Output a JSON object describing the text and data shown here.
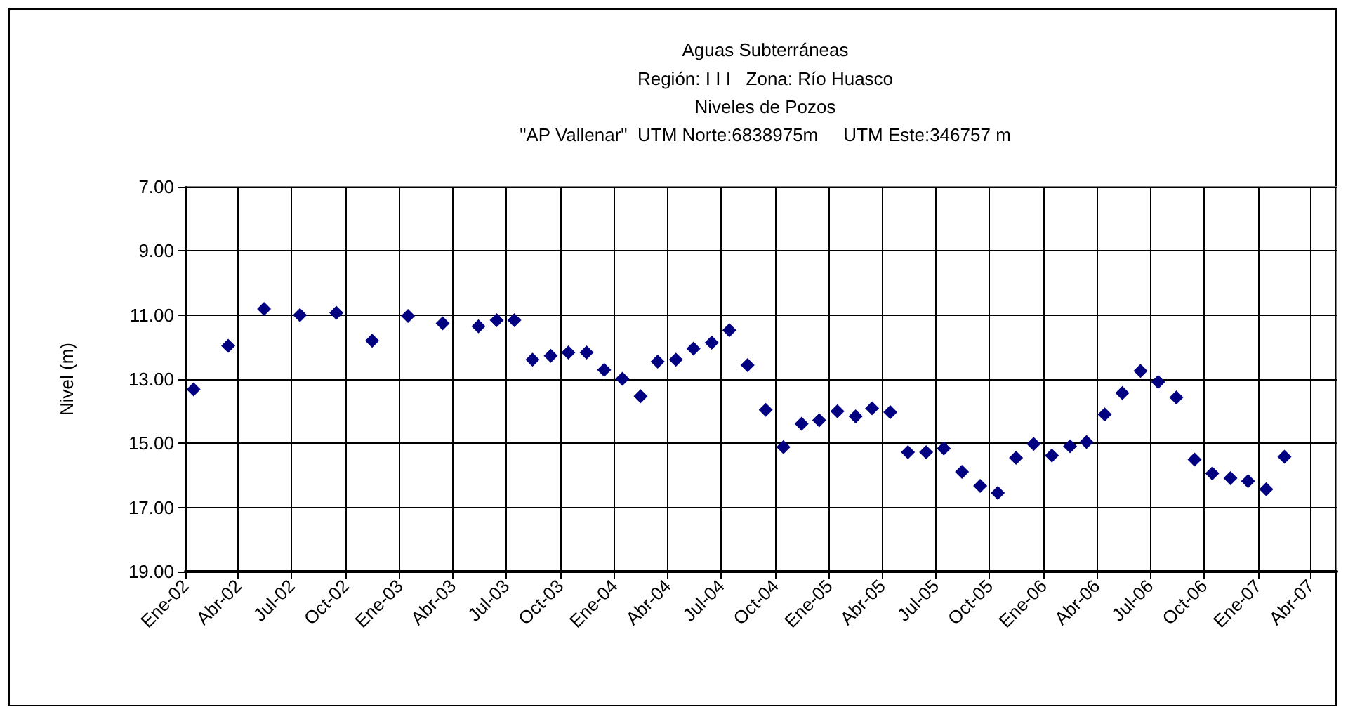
{
  "chart_data": {
    "type": "scatter",
    "title": "Aguas Subterráneas",
    "subtitle": "Región: I I I   Zona: Río Huasco\nNiveles de Pozos\n\"AP Vallenar\"  UTM Norte:6838975m     UTM Este:346757 m",
    "ylabel": "Nivel (m)",
    "x": [
      "2002-01-15",
      "2002-03-15",
      "2002-05-15",
      "2002-07-15",
      "2002-09-15",
      "2002-11-15",
      "2003-01-15",
      "2003-03-15",
      "2003-05-15",
      "2003-06-15",
      "2003-07-15",
      "2003-08-15",
      "2003-09-15",
      "2003-10-15",
      "2003-11-15",
      "2003-12-15",
      "2004-01-15",
      "2004-02-15",
      "2004-03-15",
      "2004-04-15",
      "2004-05-15",
      "2004-06-15",
      "2004-07-15",
      "2004-08-15",
      "2004-09-15",
      "2004-10-15",
      "2004-11-15",
      "2004-12-15",
      "2005-01-15",
      "2005-02-15",
      "2005-03-15",
      "2005-04-15",
      "2005-05-15",
      "2005-06-15",
      "2005-07-15",
      "2005-08-15",
      "2005-09-15",
      "2005-10-15",
      "2005-11-15",
      "2005-12-15",
      "2006-01-15",
      "2006-02-15",
      "2006-03-15",
      "2006-04-15",
      "2006-05-15",
      "2006-06-15",
      "2006-07-15",
      "2006-08-15",
      "2006-09-15",
      "2006-10-15",
      "2006-11-15",
      "2006-12-15",
      "2007-01-15",
      "2007-02-15"
    ],
    "values": [
      13.32,
      11.96,
      10.81,
      11.0,
      10.93,
      11.8,
      11.03,
      11.26,
      11.35,
      11.16,
      11.16,
      12.39,
      12.27,
      12.17,
      12.17,
      12.71,
      12.99,
      13.53,
      12.45,
      12.39,
      12.05,
      11.86,
      11.47,
      12.56,
      13.96,
      15.12,
      14.39,
      14.28,
      14.0,
      14.16,
      13.91,
      14.03,
      15.28,
      15.28,
      15.16,
      15.89,
      16.33,
      16.55,
      15.45,
      15.02,
      15.38,
      15.09,
      14.96,
      14.1,
      13.43,
      12.74,
      13.09,
      13.57,
      15.51,
      15.94,
      16.09,
      16.18,
      16.43,
      15.42
    ],
    "color": "#000080",
    "marker": "diamond",
    "xlim": [
      "2002-01-01",
      "2007-05-15"
    ],
    "xticks": [
      {
        "value": "2002-01-01",
        "label": "Ene-02"
      },
      {
        "value": "2002-04-01",
        "label": "Abr-02"
      },
      {
        "value": "2002-07-01",
        "label": "Jul-02"
      },
      {
        "value": "2002-10-01",
        "label": "Oct-02"
      },
      {
        "value": "2003-01-01",
        "label": "Ene-03"
      },
      {
        "value": "2003-04-01",
        "label": "Abr-03"
      },
      {
        "value": "2003-07-01",
        "label": "Jul-03"
      },
      {
        "value": "2003-10-01",
        "label": "Oct-03"
      },
      {
        "value": "2004-01-01",
        "label": "Ene-04"
      },
      {
        "value": "2004-04-01",
        "label": "Abr-04"
      },
      {
        "value": "2004-07-01",
        "label": "Jul-04"
      },
      {
        "value": "2004-10-01",
        "label": "Oct-04"
      },
      {
        "value": "2005-01-01",
        "label": "Ene-05"
      },
      {
        "value": "2005-04-01",
        "label": "Abr-05"
      },
      {
        "value": "2005-07-01",
        "label": "Jul-05"
      },
      {
        "value": "2005-10-01",
        "label": "Oct-05"
      },
      {
        "value": "2006-01-01",
        "label": "Ene-06"
      },
      {
        "value": "2006-04-01",
        "label": "Abr-06"
      },
      {
        "value": "2006-07-01",
        "label": "Jul-06"
      },
      {
        "value": "2006-10-01",
        "label": "Oct-06"
      },
      {
        "value": "2007-01-01",
        "label": "Ene-07"
      },
      {
        "value": "2007-04-01",
        "label": "Abr-07"
      }
    ],
    "ylim": [
      19,
      7
    ],
    "yticks": [
      {
        "value": 7,
        "label": "7.00"
      },
      {
        "value": 9,
        "label": "9.00"
      },
      {
        "value": 11,
        "label": "11.00"
      },
      {
        "value": 13,
        "label": "13.00"
      },
      {
        "value": 15,
        "label": "15.00"
      },
      {
        "value": 17,
        "label": "17.00"
      },
      {
        "value": 19,
        "label": "19.00"
      }
    ],
    "grid": true
  }
}
